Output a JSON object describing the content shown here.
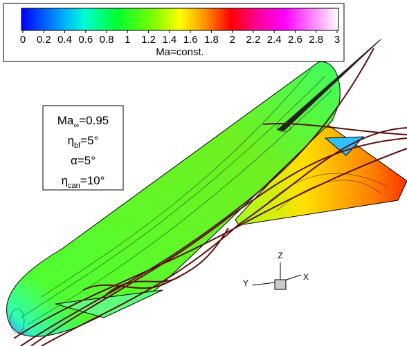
{
  "colorbar": {
    "range": [
      0,
      3
    ],
    "ticks": [
      0,
      0.2,
      0.4,
      0.6,
      0.8,
      1,
      1.2,
      1.4,
      1.6,
      1.8,
      2,
      2.2,
      2.4,
      2.6,
      2.8,
      3
    ],
    "title": "Ma=const."
  },
  "annotation": [
    {
      "symbol": "Ma",
      "sub": "∞",
      "value": "=0.95"
    },
    {
      "symbol": "η",
      "sub": "bf",
      "value": "=5°"
    },
    {
      "symbol": "α",
      "sub": null,
      "value": "=5°"
    },
    {
      "symbol": "η",
      "sub": "can",
      "value": "=10°"
    }
  ],
  "axes": {
    "z": "Z",
    "y": "Y",
    "x": "X"
  }
}
